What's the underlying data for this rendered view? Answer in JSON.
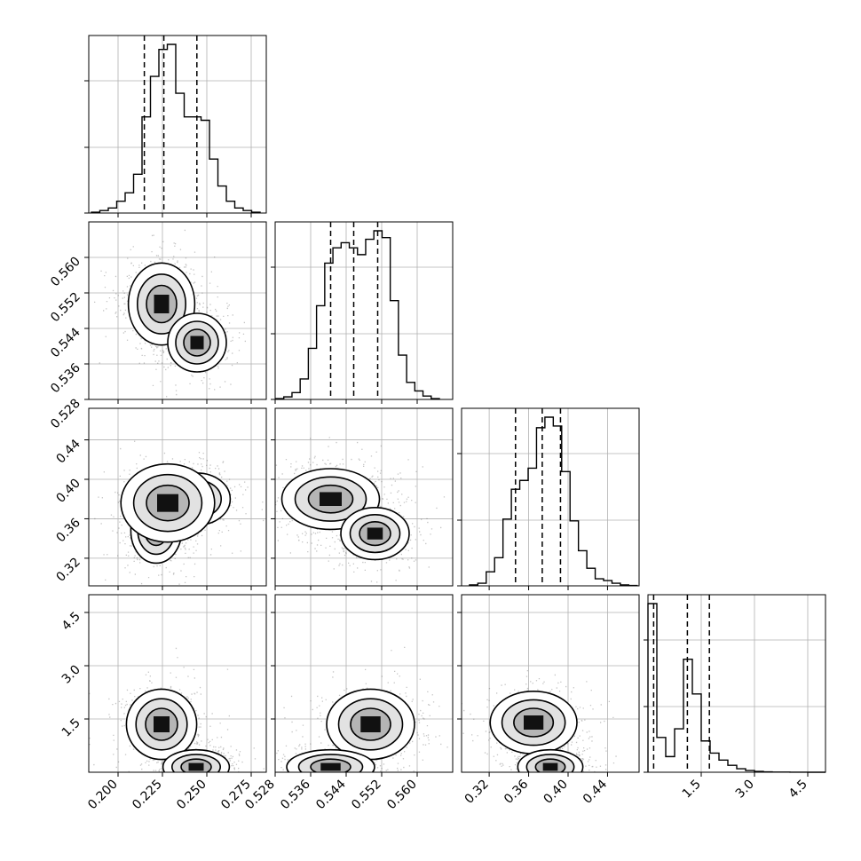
{
  "chart_data": {
    "type": "corner",
    "n_params": 4,
    "grid": true,
    "axes": [
      {
        "index": 0,
        "range": [
          0.1835,
          0.2835
        ],
        "ticks": [
          0.2,
          0.225,
          0.25,
          0.275
        ],
        "tick_labels": [
          "0.200",
          "0.225",
          "0.250",
          "0.275"
        ],
        "quantiles": [
          0.2148,
          0.2258,
          0.2444
        ],
        "hist_range": [
          0.185,
          0.28
        ],
        "hist_values": [
          0.5,
          1.5,
          3,
          7,
          12,
          23,
          57,
          81,
          97,
          100,
          71,
          57,
          57,
          55,
          32,
          16,
          7,
          3,
          1.5,
          0.5
        ]
      },
      {
        "index": 1,
        "range": [
          0.528,
          0.568
        ],
        "ticks": [
          0.528,
          0.536,
          0.544,
          0.552,
          0.56
        ],
        "tick_labels": [
          "0.528",
          "0.536",
          "0.544",
          "0.552",
          "0.560"
        ],
        "quantiles": [
          0.5405,
          0.5457,
          0.5511
        ],
        "hist_range": [
          0.5281,
          0.565
        ],
        "hist_values": [
          0.5,
          1.5,
          4,
          12,
          30,
          55,
          80,
          89,
          92,
          89,
          85,
          94,
          99,
          95,
          58,
          26,
          10,
          5,
          2,
          0.5
        ]
      },
      {
        "index": 2,
        "range": [
          0.292,
          0.472
        ],
        "ticks": [
          0.32,
          0.36,
          0.4,
          0.44
        ],
        "tick_labels": [
          "0.32",
          "0.36",
          "0.40",
          "0.44"
        ],
        "quantiles": [
          0.3467,
          0.3738,
          0.3923
        ],
        "hist_range": [
          0.3,
          0.47
        ],
        "hist_values": [
          0.5,
          1.5,
          8,
          16,
          38,
          55,
          60,
          67,
          90,
          96,
          91,
          65,
          37,
          20,
          10,
          4,
          3,
          1.5,
          0.5,
          0.2
        ]
      },
      {
        "index": 3,
        "range": [
          0,
          5
        ],
        "ticks": [
          1.5,
          3.0,
          4.5
        ],
        "tick_labels": [
          "1.5",
          "3.0",
          "4.5"
        ],
        "quantiles": [
          0.16,
          1.11,
          1.73
        ],
        "hist_range": [
          0,
          5
        ],
        "hist_values": [
          97,
          20,
          9,
          25,
          65,
          45,
          18,
          11,
          7,
          4,
          2,
          1,
          0.5,
          0.2,
          0.1,
          0.1,
          0.05,
          0.05,
          0,
          0
        ]
      }
    ],
    "pairs": [
      {
        "x": 0,
        "y": 1,
        "modes": [
          {
            "cx": 0.2245,
            "cy": 0.5495,
            "sx": 0.0085,
            "sy": 0.0042,
            "w": 1.0
          },
          {
            "cx": 0.2445,
            "cy": 0.5408,
            "sx": 0.0075,
            "sy": 0.003,
            "w": 0.7
          }
        ]
      },
      {
        "x": 0,
        "y": 2,
        "modes": [
          {
            "cx": 0.2215,
            "cy": 0.348,
            "sx": 0.0065,
            "sy": 0.015,
            "w": 0.9
          },
          {
            "cx": 0.2445,
            "cy": 0.38,
            "sx": 0.0085,
            "sy": 0.012,
            "w": 0.8
          },
          {
            "cx": 0.228,
            "cy": 0.376,
            "sx": 0.012,
            "sy": 0.018,
            "w": 0.6
          }
        ]
      },
      {
        "x": 1,
        "y": 2,
        "modes": [
          {
            "cx": 0.5405,
            "cy": 0.38,
            "sx": 0.005,
            "sy": 0.014,
            "w": 1.0
          },
          {
            "cx": 0.5505,
            "cy": 0.345,
            "sx": 0.0035,
            "sy": 0.012,
            "w": 0.65
          }
        ]
      },
      {
        "x": 0,
        "y": 3,
        "modes": [
          {
            "cx": 0.2245,
            "cy": 1.35,
            "sx": 0.009,
            "sy": 0.45,
            "w": 0.8
          },
          {
            "cx": 0.244,
            "cy": 0.15,
            "sx": 0.0085,
            "sy": 0.22,
            "w": 1.0
          }
        ]
      },
      {
        "x": 1,
        "y": 3,
        "modes": [
          {
            "cx": 0.5495,
            "cy": 1.35,
            "sx": 0.0045,
            "sy": 0.45,
            "w": 0.8
          },
          {
            "cx": 0.5405,
            "cy": 0.15,
            "sx": 0.0045,
            "sy": 0.22,
            "w": 1.0
          }
        ]
      },
      {
        "x": 2,
        "y": 3,
        "modes": [
          {
            "cx": 0.365,
            "cy": 1.4,
            "sx": 0.02,
            "sy": 0.4,
            "w": 0.8
          },
          {
            "cx": 0.382,
            "cy": 0.15,
            "sx": 0.015,
            "sy": 0.22,
            "w": 1.0
          }
        ]
      }
    ]
  }
}
